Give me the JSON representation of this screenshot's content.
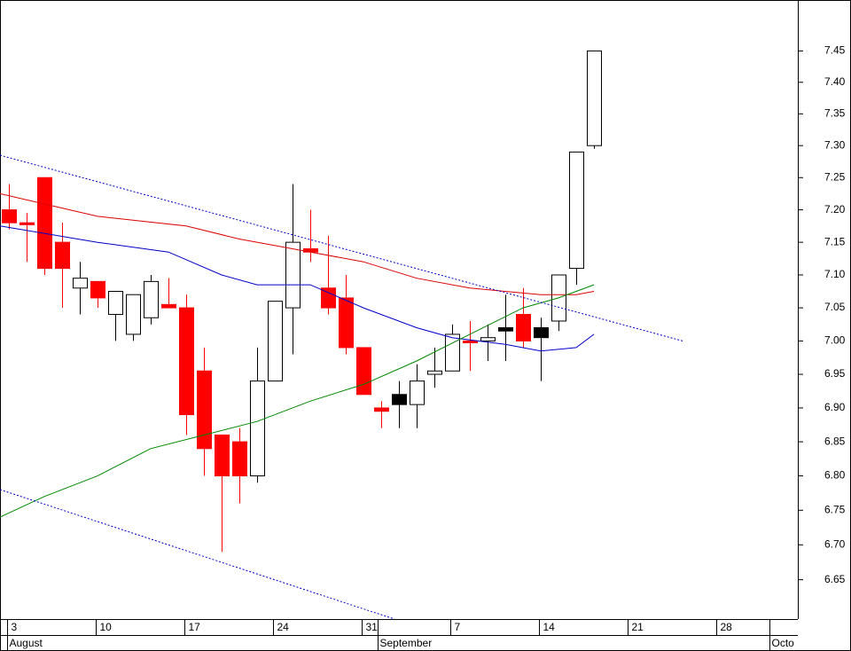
{
  "chart_data": {
    "type": "candlestick",
    "log_scale": true,
    "ylim": [
      6.594,
      7.532
    ],
    "yticks": [
      6.65,
      {
        "value": 6.7,
        "label": "6.70"
      },
      6.75,
      {
        "value": 6.8,
        "label": "6.80"
      },
      6.85,
      {
        "value": 6.9,
        "label": "6.90"
      },
      6.95,
      {
        "value": 7.0,
        "label": "7.00"
      },
      7.05,
      {
        "value": 7.1,
        "label": "7.10"
      },
      7.15,
      {
        "value": 7.2,
        "label": "7.20"
      },
      7.25,
      {
        "value": 7.3,
        "label": "7.30"
      },
      7.35,
      {
        "value": 7.4,
        "label": "7.40"
      },
      7.45
    ],
    "xlim": [
      -0.5,
      44.5
    ],
    "xticks": [
      {
        "value": 0,
        "label": "3"
      },
      {
        "value": 5,
        "label": "10"
      },
      {
        "value": 10,
        "label": "17"
      },
      {
        "value": 15,
        "label": "24"
      },
      {
        "value": 20,
        "label": "31"
      },
      {
        "value": 25,
        "label": "7"
      },
      {
        "value": 30,
        "label": "14"
      },
      {
        "value": 35,
        "label": "21"
      },
      {
        "value": 40,
        "label": "28"
      }
    ],
    "month_ticks": [
      {
        "value": 0,
        "label": "August"
      },
      {
        "value": 20.9,
        "label": "September"
      },
      {
        "value": 43,
        "label": "Octo"
      }
    ],
    "candles": {
      "open": [
        7.2,
        7.18,
        7.25,
        7.15,
        7.08,
        7.09,
        7.04,
        7.01,
        7.035,
        7.055,
        7.05,
        6.955,
        6.86,
        6.85,
        6.8,
        6.94,
        7.05,
        7.14,
        7.08,
        7.065,
        6.99,
        6.9,
        6.905,
        6.905,
        6.95,
        6.955,
        7.0,
        7.0,
        7.015,
        7.04,
        7.02,
        7.03,
        7.11,
        7.3
      ],
      "high": [
        7.24,
        7.195,
        7.25,
        7.18,
        7.12,
        7.09,
        7.075,
        7.07,
        7.1,
        7.095,
        7.07,
        6.99,
        6.86,
        6.87,
        6.99,
        7.06,
        7.24,
        7.2,
        7.16,
        7.1,
        6.99,
        6.91,
        6.94,
        6.965,
        6.99,
        7.025,
        7.03,
        7.025,
        7.07,
        7.08,
        7.035,
        7.1,
        7.29,
        7.45
      ],
      "low": [
        7.17,
        7.12,
        7.1,
        7.05,
        7.04,
        7.05,
        7.0,
        7.0,
        7.025,
        7.05,
        6.86,
        6.8,
        6.69,
        6.76,
        6.79,
        6.98,
        6.98,
        7.12,
        7.04,
        6.98,
        6.92,
        6.87,
        6.87,
        6.87,
        6.93,
        6.955,
        6.955,
        6.97,
        6.97,
        6.99,
        6.94,
        7.015,
        7.085,
        7.295
      ],
      "close": [
        7.18,
        7.177,
        7.11,
        7.11,
        7.095,
        7.065,
        7.075,
        7.07,
        7.09,
        7.05,
        6.89,
        6.84,
        6.8,
        6.8,
        6.94,
        7.06,
        7.15,
        7.135,
        7.05,
        6.99,
        6.92,
        6.895,
        6.92,
        6.94,
        6.955,
        7.01,
        6.998,
        7.005,
        7.02,
        7.0,
        7.005,
        7.1,
        7.29,
        7.45
      ],
      "fills": [
        "#ff0000",
        "#ff0000",
        "#ff0000",
        "#ff0000",
        "#ffffff",
        "#ff0000",
        "#ffffff",
        "#ffffff",
        "#ffffff",
        "#ff0000",
        "#ff0000",
        "#ff0000",
        "#ff0000",
        "#ff0000",
        "#ffffff",
        "#ffffff",
        "#ffffff",
        "#ff0000",
        "#ff0000",
        "#ff0000",
        "#ff0000",
        "#ff0000",
        "#000000",
        "#ffffff",
        "#ffffff",
        "#ffffff",
        "#ff0000",
        "#ffffff",
        "#000000",
        "#ff0000",
        "#000000",
        "#ffffff",
        "#ffffff",
        "#ffffff"
      ]
    },
    "lines": [
      {
        "color": "#dd0000",
        "style": "solid",
        "x": [
          -0.5,
          5,
          10,
          13,
          16,
          20,
          23,
          26,
          28,
          30,
          32,
          33
        ],
        "values": [
          7.225,
          7.19,
          7.175,
          7.155,
          7.14,
          7.12,
          7.095,
          7.08,
          7.075,
          7.07,
          7.07,
          7.075
        ]
      },
      {
        "color": "#0000cc",
        "style": "solid",
        "x": [
          -0.5,
          5,
          9,
          12,
          14,
          17,
          20,
          23,
          25,
          28,
          30,
          32,
          33
        ],
        "values": [
          7.175,
          7.15,
          7.135,
          7.1,
          7.085,
          7.085,
          7.05,
          7.02,
          7.005,
          6.995,
          6.985,
          6.99,
          7.01
        ]
      },
      {
        "color": "#008800",
        "style": "solid",
        "x": [
          -0.5,
          2,
          5,
          8,
          11,
          14,
          17,
          20,
          23,
          26,
          29,
          31,
          33
        ],
        "values": [
          6.74,
          6.77,
          6.8,
          6.84,
          6.86,
          6.88,
          6.91,
          6.935,
          6.97,
          7.01,
          7.05,
          7.065,
          7.085
        ]
      },
      {
        "color": "#0000cc",
        "style": "dotted",
        "x": [
          -0.5,
          38
        ],
        "values": [
          7.285,
          7.0
        ]
      },
      {
        "color": "#0000cc",
        "style": "dotted",
        "x": [
          -0.5,
          21.75
        ],
        "values": [
          6.78,
          6.594
        ]
      }
    ]
  }
}
